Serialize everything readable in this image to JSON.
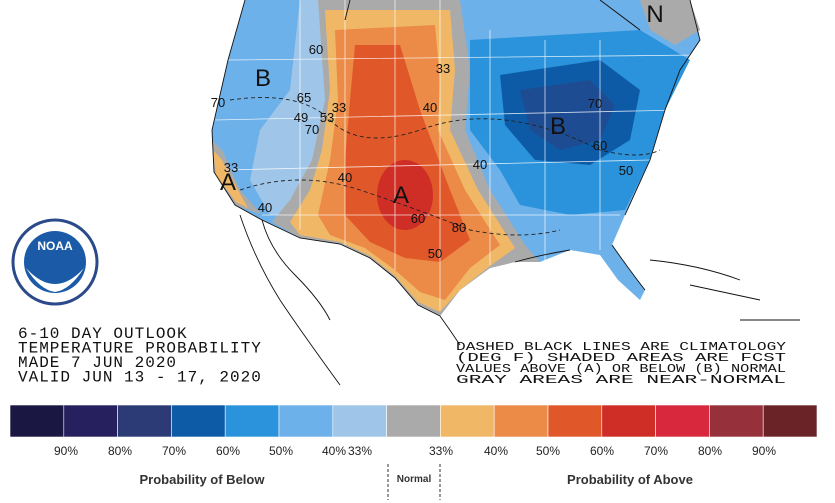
{
  "outlook": {
    "lines": [
      "6-10 DAY OUTLOOK",
      "TEMPERATURE PROBABILITY",
      "MADE   7 JUN 2020",
      "VALID   JUN 13 - 17, 2020"
    ]
  },
  "note": {
    "lines": [
      "DASHED BLACK LINES ARE CLIMATOLOGY",
      "(DEG F) SHADED AREAS ARE FCST",
      "VALUES ABOVE (A) OR BELOW (B) NORMAL",
      "GRAY AREAS ARE NEAR-NORMAL"
    ]
  },
  "logo": {
    "text": "NOAA"
  },
  "map": {
    "markers": [
      "B",
      "A",
      "A",
      "B",
      "N"
    ],
    "contours": [
      "60",
      "65",
      "33",
      "49",
      "53",
      "70",
      "70",
      "33",
      "40",
      "40",
      "60",
      "80",
      "50",
      "33",
      "40",
      "40",
      "70",
      "60",
      "50"
    ]
  },
  "legend": {
    "colors": [
      "#1b1743",
      "#27205f",
      "#2c3b76",
      "#0d5ba7",
      "#2a93dc",
      "#6db1ea",
      "#9fc6e8",
      "#aaaaaa",
      "#f0b866",
      "#ec8a47",
      "#e0582a",
      "#cf2e26",
      "#d7283e",
      "#96303a",
      "#6a2428"
    ],
    "labels": [
      "90%",
      "80%",
      "70%",
      "60%",
      "50%",
      "40%",
      "33%",
      "33%",
      "40%",
      "50%",
      "60%",
      "70%",
      "80%",
      "90%"
    ],
    "below": "Probability of Below",
    "normal": "Normal",
    "above": "Probability of Above"
  }
}
